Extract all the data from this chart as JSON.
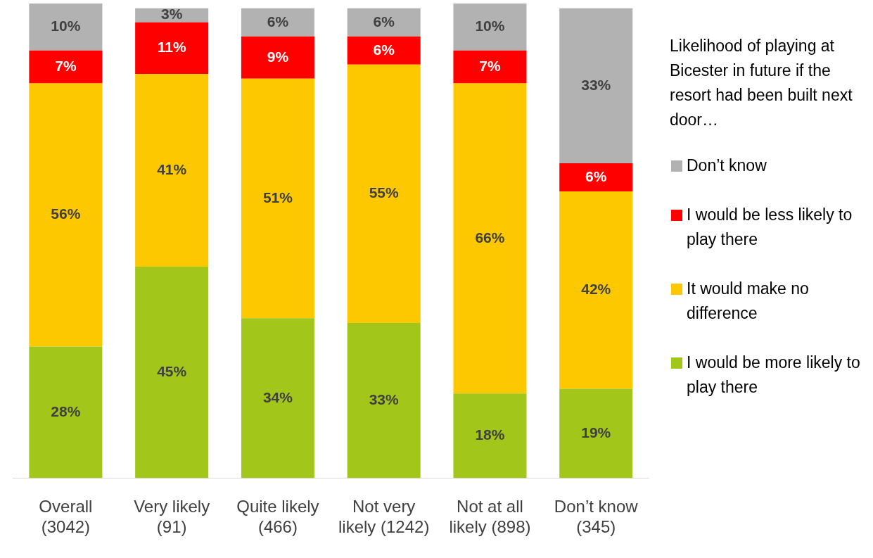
{
  "chart_data": {
    "type": "bar",
    "stacked": true,
    "grid": false,
    "legend": "right",
    "legend_title": "Likelihood of playing at Bicester in future if the resort had been built next door…",
    "categories": [
      "Overall (3042)",
      "Very likely (91)",
      "Quite likely (466)",
      "Not very likely (1242)",
      "Not at all likely (898)",
      "Don’t know (345)"
    ],
    "series": [
      {
        "name": "I would be more likely to play there",
        "color": "#a2c61a",
        "values": [
          28,
          45,
          34,
          33,
          18,
          19
        ],
        "value_labels": [
          "28%",
          "45%",
          "34%",
          "33%",
          "18%",
          "19%"
        ]
      },
      {
        "name": "It would make no difference",
        "color": "#fdc800",
        "values": [
          56,
          41,
          51,
          55,
          66,
          42
        ],
        "value_labels": [
          "56%",
          "41%",
          "51%",
          "55%",
          "66%",
          "42%"
        ]
      },
      {
        "name": "I would be less likely to play there",
        "color": "#fe0000",
        "values": [
          7,
          11,
          9,
          6,
          7,
          6
        ],
        "value_labels": [
          "7%",
          "11%",
          "9%",
          "6%",
          "7%",
          "6%"
        ]
      },
      {
        "name": "Don’t know",
        "color": "#b2b2b2",
        "values": [
          10,
          3,
          6,
          6,
          10,
          33
        ],
        "value_labels": [
          "10%",
          "3%",
          "6%",
          "6%",
          "10%",
          "33%"
        ]
      }
    ]
  }
}
